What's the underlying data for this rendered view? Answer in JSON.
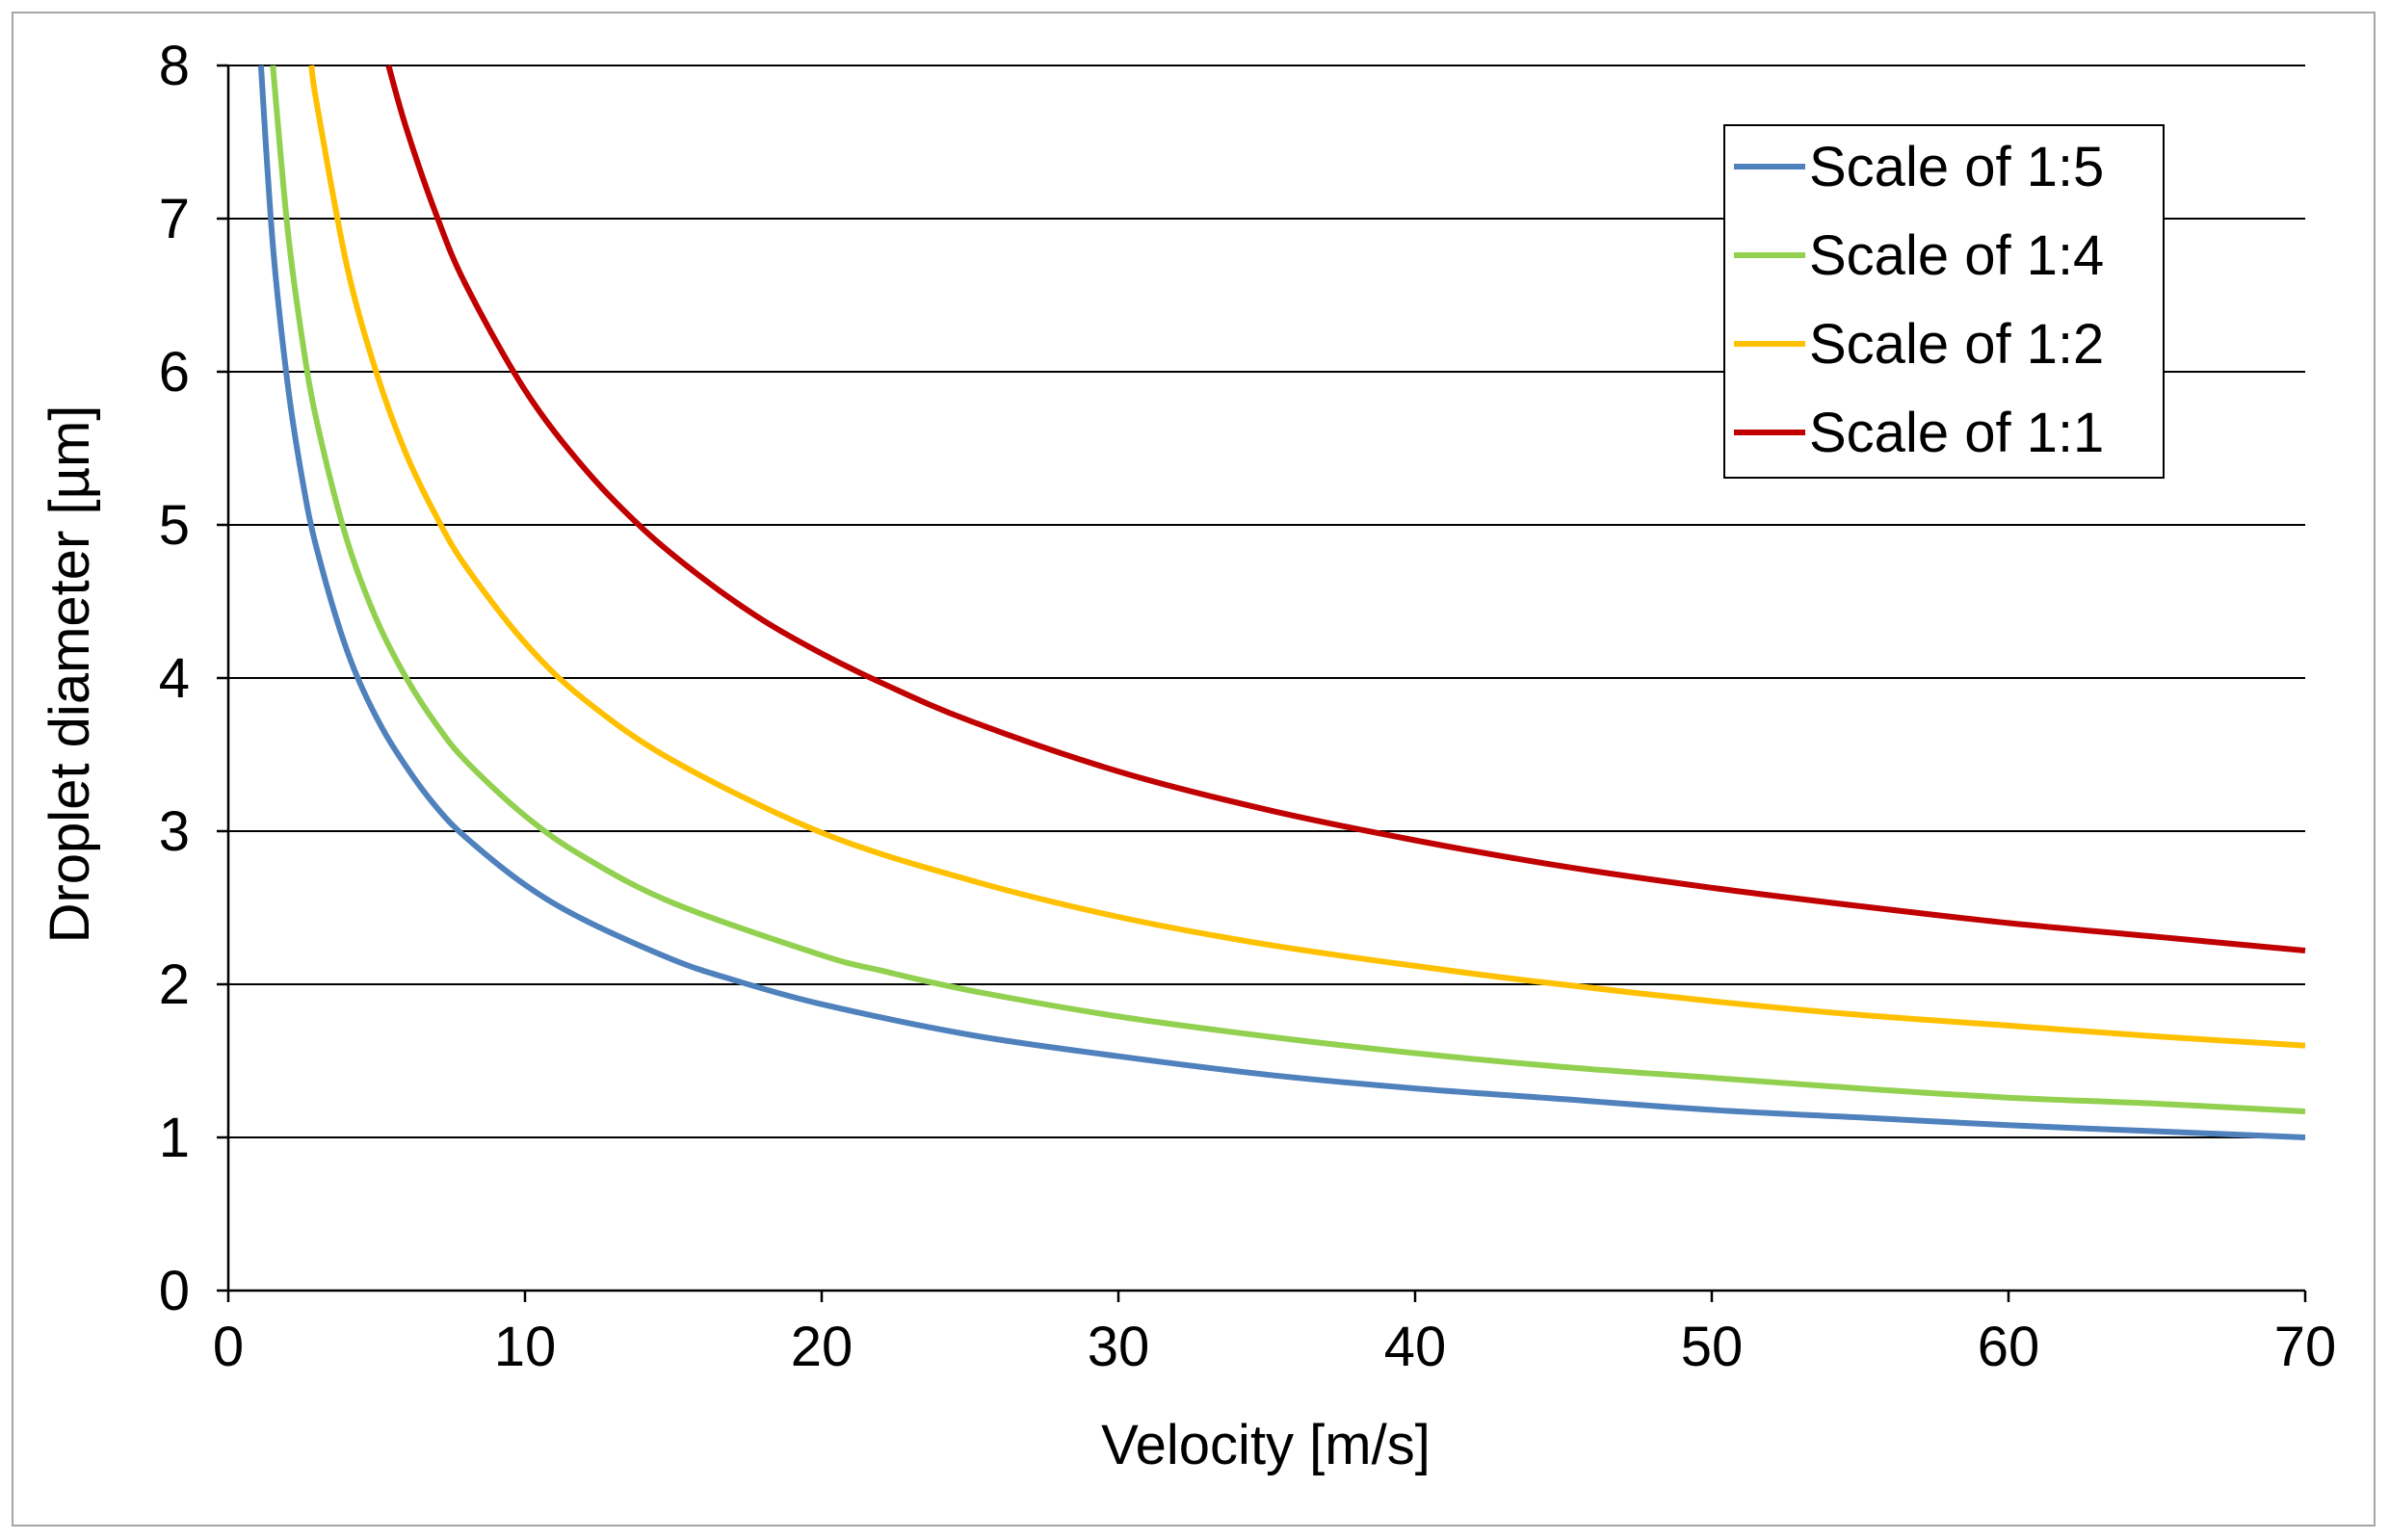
{
  "chart_data": {
    "type": "line",
    "title": "",
    "xlabel": "Velocity [m/s]",
    "ylabel": "Droplet diameter [µm]",
    "xlim": [
      0,
      70
    ],
    "ylim": [
      0,
      8
    ],
    "xticks": [
      0,
      10,
      20,
      30,
      40,
      50,
      60,
      70
    ],
    "yticks": [
      0,
      1,
      2,
      3,
      4,
      5,
      6,
      7,
      8
    ],
    "xtick_labels": [
      "0",
      "10",
      "20",
      "30",
      "40",
      "50",
      "60",
      "70"
    ],
    "ytick_labels": [
      "0",
      "1",
      "2",
      "3",
      "4",
      "5",
      "6",
      "7",
      "8"
    ],
    "grid": "horizontal",
    "legend_position": "top-right",
    "series": [
      {
        "name": "Scale of 1:5",
        "color": "#4f81bd",
        "x": [
          1.1,
          1.5,
          2,
          2.5,
          3,
          4,
          5,
          6,
          7,
          8,
          10,
          12,
          15,
          17,
          20,
          25,
          30,
          35,
          40,
          45,
          50,
          55,
          60,
          65,
          70
        ],
        "y": [
          8,
          6.83,
          5.92,
          5.29,
          4.83,
          4.18,
          3.74,
          3.42,
          3.16,
          2.96,
          2.65,
          2.42,
          2.16,
          2.03,
          1.87,
          1.67,
          1.53,
          1.41,
          1.32,
          1.25,
          1.18,
          1.13,
          1.08,
          1.04,
          1.0
        ]
      },
      {
        "name": "Scale of 1:4",
        "color": "#92d050",
        "x": [
          1.5,
          2,
          2.5,
          3,
          4,
          5,
          6,
          7,
          8,
          10,
          12,
          15,
          20,
          22,
          25,
          30,
          35,
          40,
          45,
          50,
          55,
          60,
          65,
          70
        ],
        "y": [
          8,
          6.93,
          6.2,
          5.66,
          4.9,
          4.38,
          4.0,
          3.7,
          3.46,
          3.1,
          2.83,
          2.53,
          2.19,
          2.09,
          1.96,
          1.79,
          1.66,
          1.55,
          1.46,
          1.39,
          1.32,
          1.26,
          1.22,
          1.17
        ]
      },
      {
        "name": "Scale of 1:2",
        "color": "#ffc000",
        "x": [
          2.8,
          3,
          4,
          5,
          6,
          7,
          8,
          10,
          12,
          15,
          20,
          25,
          30,
          35,
          40,
          44,
          50,
          55,
          60,
          65,
          70
        ],
        "y": [
          8,
          7.73,
          6.69,
          5.99,
          5.46,
          5.06,
          4.73,
          4.23,
          3.86,
          3.46,
          2.99,
          2.68,
          2.44,
          2.26,
          2.12,
          2.02,
          1.89,
          1.8,
          1.73,
          1.66,
          1.6
        ]
      },
      {
        "name": "Scale of 1:1",
        "color": "#c00000",
        "x": [
          5.4,
          6,
          7,
          8,
          10,
          12,
          14,
          16,
          18,
          20,
          22,
          25,
          30,
          35,
          40,
          45,
          50,
          55,
          60,
          65,
          70
        ],
        "y": [
          8,
          7.59,
          7.03,
          6.57,
          5.88,
          5.37,
          4.97,
          4.65,
          4.38,
          4.16,
          3.97,
          3.72,
          3.39,
          3.14,
          2.94,
          2.77,
          2.63,
          2.51,
          2.4,
          2.31,
          2.22
        ]
      }
    ]
  }
}
